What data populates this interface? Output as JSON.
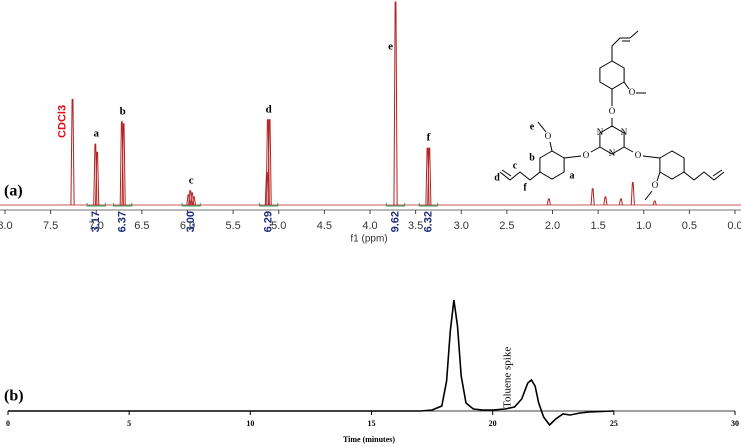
{
  "chart_data": [
    {
      "type": "nmr",
      "panel": "(a)",
      "xlabel": "f1 (ppm)",
      "color": "#b22222",
      "xlim": [
        8,
        0
      ],
      "xticks": [
        {
          "value": 8,
          "label": "8.0"
        },
        7.5,
        {
          "value": 7,
          "label": "7.0"
        },
        6.5,
        {
          "value": 6,
          "label": "6.0"
        },
        5.5,
        {
          "value": 5,
          "label": "5.0"
        },
        4.5,
        {
          "value": 4,
          "label": "4.0"
        },
        3.5,
        {
          "value": 3,
          "label": "3.0"
        },
        2.5,
        {
          "value": 2,
          "label": "2.0"
        },
        1.5,
        {
          "value": 1,
          "label": "1.0"
        },
        0.5,
        {
          "value": 0,
          "label": "0.0"
        }
      ],
      "ylim": [
        0,
        100
      ],
      "x": [
        7.26,
        7.01,
        6.99,
        6.72,
        6.7,
        5.99,
        5.97,
        5.95,
        5.93,
        5.13,
        5.12,
        5.1,
        3.72,
        3.37,
        3.35,
        2.04,
        1.56,
        1.42,
        1.25,
        1.12,
        0.88
      ],
      "values": [
        52,
        30,
        26,
        41,
        40,
        5,
        7,
        6,
        4,
        16,
        42,
        42,
        100,
        28,
        28,
        3,
        8,
        4,
        3,
        11,
        2
      ],
      "peak_labels": [
        {
          "text": "CDCl3",
          "x": 7.26
        },
        {
          "text": "a",
          "x": 7.0
        },
        {
          "text": "b",
          "x": 6.71
        },
        {
          "text": "c",
          "x": 5.96
        },
        {
          "text": "d",
          "x": 5.11
        },
        {
          "text": "e",
          "x": 3.72
        },
        {
          "text": "f",
          "x": 3.36
        }
      ],
      "integrals": {
        "x": [
          7.0,
          6.71,
          5.96,
          5.11,
          3.72,
          3.36
        ],
        "values": [
          3.17,
          6.37,
          3,
          6.29,
          9.62,
          6.32
        ],
        "value_labels": [
          "3.17",
          "6.37",
          "3.00",
          "6.29",
          "9.62",
          "6.32"
        ]
      },
      "structure_labels": [
        "e",
        "b",
        "a",
        "f",
        "c",
        "d",
        "N",
        "N",
        "N",
        "O",
        "O",
        "O",
        "O",
        "O",
        "O"
      ]
    },
    {
      "type": "line",
      "panel": "(b)",
      "xlabel": "Time (minutes)",
      "annotation": "Toluene spike",
      "color": "#000000",
      "xlim": [
        0,
        30
      ],
      "xticks": [
        0,
        5,
        10,
        15,
        20,
        25,
        30
      ],
      "ylim": [
        -20,
        120
      ],
      "x": [
        0,
        17,
        17.5,
        17.9,
        18.1,
        18.25,
        18.4,
        18.55,
        18.7,
        18.9,
        19.2,
        19.6,
        20,
        20.5,
        20.9,
        21.2,
        21.45,
        21.6,
        21.75,
        21.9,
        22.1,
        22.35,
        22.6,
        22.9,
        23.2,
        23.6,
        24,
        25
      ],
      "values": [
        0,
        0,
        1,
        5,
        30,
        80,
        111,
        85,
        35,
        8,
        2,
        1,
        1,
        2,
        4,
        12,
        28,
        31,
        25,
        8,
        -6,
        -14,
        -8,
        -3,
        -4,
        -2,
        -1,
        0
      ]
    }
  ]
}
